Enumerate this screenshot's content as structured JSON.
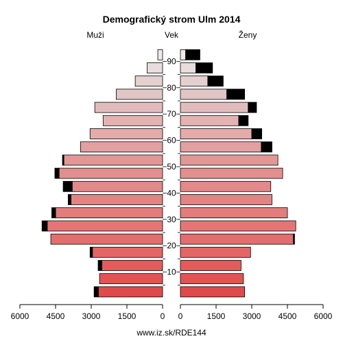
{
  "chart_data": {
    "type": "bar",
    "orientation": "horizontal",
    "layout": "population-pyramid",
    "title": "Demografický strom Ulm 2014",
    "left_label": "Muži",
    "center_label": "Vek",
    "right_label": "Ženy",
    "footer": "www.iz.sk/RDE144",
    "age_groups": [
      "0-4",
      "5-9",
      "10-14",
      "15-19",
      "20-24",
      "25-29",
      "30-34",
      "35-39",
      "40-44",
      "45-49",
      "50-54",
      "55-59",
      "60-64",
      "65-69",
      "70-74",
      "75-79",
      "80-84",
      "85-89",
      "90+"
    ],
    "y_ticks": [
      "10",
      "20",
      "30",
      "40",
      "50",
      "60",
      "70",
      "80",
      "90"
    ],
    "y_tick_ages": [
      10,
      20,
      30,
      40,
      50,
      60,
      70,
      80,
      90
    ],
    "xlim": [
      0,
      6000
    ],
    "x_ticks": [
      "6000",
      "4500",
      "3000",
      "1500",
      "0",
      "0",
      "1500",
      "3000",
      "4500",
      "6000"
    ],
    "male_tick_values": [
      6000,
      4500,
      3000,
      1500,
      0
    ],
    "female_tick_values": [
      0,
      1500,
      3000,
      4500,
      6000
    ],
    "series": [
      {
        "name": "Muži",
        "base": [
          2700,
          2650,
          2550,
          2950,
          4700,
          4850,
          4500,
          3850,
          3800,
          4350,
          4150,
          3450,
          3050,
          2500,
          2850,
          1950,
          1150,
          650,
          200
        ],
        "excess": [
          180,
          0,
          160,
          100,
          0,
          220,
          160,
          120,
          380,
          180,
          60,
          0,
          0,
          0,
          0,
          0,
          0,
          0,
          0
        ]
      },
      {
        "name": "Ženy",
        "base": [
          2700,
          2650,
          2550,
          2950,
          4750,
          4850,
          4500,
          3850,
          3800,
          4300,
          4100,
          3400,
          3000,
          2450,
          2850,
          1950,
          1150,
          650,
          220
        ],
        "excess": [
          0,
          0,
          0,
          0,
          50,
          0,
          0,
          0,
          0,
          0,
          0,
          450,
          420,
          400,
          350,
          750,
          650,
          700,
          600
        ]
      }
    ],
    "bar_colors": [
      "#e14a4a",
      "#e25454",
      "#e35b5b",
      "#e46565",
      "#e56d6d",
      "#e57575",
      "#e37c7c",
      "#e38383",
      "#e28989",
      "#e38f8f",
      "#e29797",
      "#e3a0a0",
      "#e5aaaa",
      "#e5b2b2",
      "#e2bcbc",
      "#e2c6c6",
      "#e5d0d0",
      "#e8dddd",
      "#efeaea"
    ],
    "excess_color": "#000000"
  }
}
